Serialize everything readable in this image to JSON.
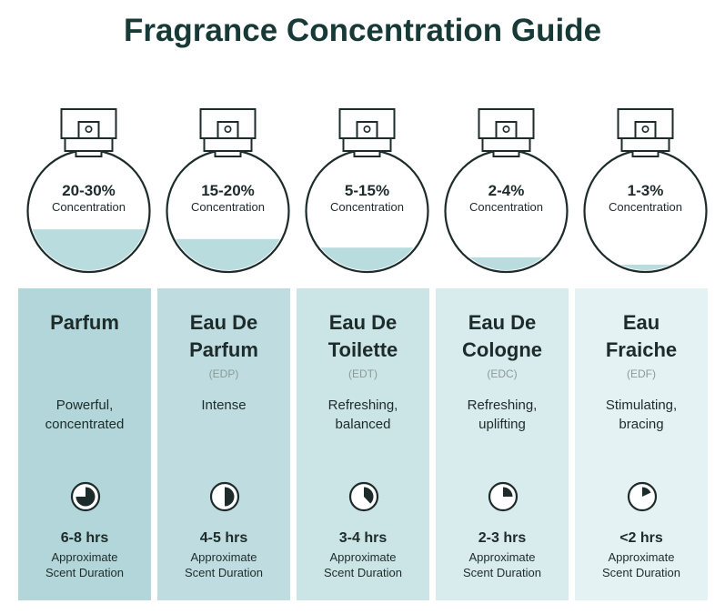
{
  "title": "Fragrance Concentration Guide",
  "colors": {
    "title": "#173a36",
    "liquid": "#b9dcdf",
    "outline": "#1d2b2a",
    "panels": [
      "#b2d6d9",
      "#bfdde0",
      "#cbe4e6",
      "#d8ebed",
      "#e4f2f3"
    ]
  },
  "concentration_label": "Concentration",
  "duration_label_line1": "Approximate",
  "duration_label_line2": "Scent Duration",
  "types": [
    {
      "percent": "20-30%",
      "name_line1": "Parfum",
      "name_line2": "",
      "abbr": "",
      "desc_line1": "Powerful,",
      "desc_line2": "concentrated",
      "hours": "6-8 hrs",
      "fill_level": 0.35,
      "clock_fraction": 0.75
    },
    {
      "percent": "15-20%",
      "name_line1": "Eau De",
      "name_line2": "Parfum",
      "abbr": "(EDP)",
      "desc_line1": "Intense",
      "desc_line2": "",
      "hours": "4-5 hrs",
      "fill_level": 0.27,
      "clock_fraction": 0.5
    },
    {
      "percent": "5-15%",
      "name_line1": "Eau De",
      "name_line2": "Toilette",
      "abbr": "(EDT)",
      "desc_line1": "Refreshing,",
      "desc_line2": "balanced",
      "hours": "3-4 hrs",
      "fill_level": 0.2,
      "clock_fraction": 0.38
    },
    {
      "percent": "2-4%",
      "name_line1": "Eau De",
      "name_line2": "Cologne",
      "abbr": "(EDC)",
      "desc_line1": "Refreshing,",
      "desc_line2": "uplifting",
      "hours": "2-3 hrs",
      "fill_level": 0.12,
      "clock_fraction": 0.25
    },
    {
      "percent": "1-3%",
      "name_line1": "Eau",
      "name_line2": "Fraiche",
      "abbr": "(EDF)",
      "desc_line1": "Stimulating,",
      "desc_line2": "bracing",
      "hours": "<2 hrs",
      "fill_level": 0.06,
      "clock_fraction": 0.18
    }
  ]
}
